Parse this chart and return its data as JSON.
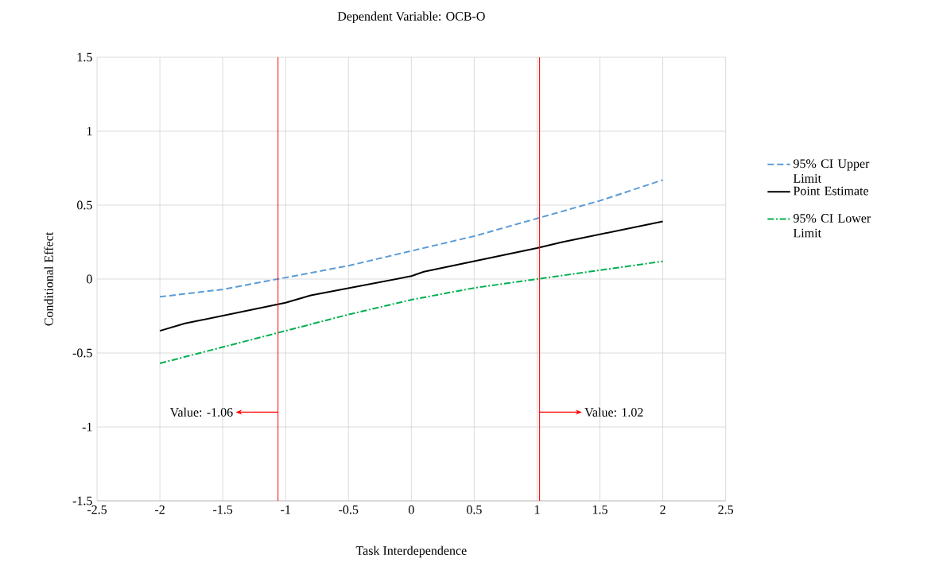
{
  "chart_data": {
    "type": "line",
    "title": "Dependent Variable: OCB-O",
    "xlabel": "Task Interdependence",
    "ylabel": "Conditional  Effect",
    "xlim": [
      -2.5,
      2.5
    ],
    "ylim": [
      -1.5,
      1.5
    ],
    "xticks": [
      -2.5,
      -2,
      -1.5,
      -1,
      -0.5,
      0,
      0.5,
      1,
      1.5,
      2,
      2.5
    ],
    "yticks": [
      -1.5,
      -1,
      -0.5,
      0,
      0.5,
      1,
      1.5
    ],
    "grid": true,
    "legend": "right",
    "series": [
      {
        "name": "95% CI Upper Limit",
        "color": "#5b9bd5",
        "line_style": "dashed",
        "x": [
          -2,
          -1.5,
          -1,
          -0.5,
          0,
          0.5,
          1,
          1.5,
          2
        ],
        "values": [
          -0.12,
          -0.07,
          0.01,
          0.09,
          0.19,
          0.29,
          0.41,
          0.53,
          0.67
        ]
      },
      {
        "name": "Point Estimate",
        "color": "#000000",
        "line_style": "solid",
        "x": [
          -2,
          -1.8,
          -1,
          -0.8,
          0,
          0.1,
          1,
          1.2,
          2
        ],
        "values": [
          -0.35,
          -0.3,
          -0.16,
          -0.11,
          0.02,
          0.05,
          0.21,
          0.25,
          0.39
        ]
      },
      {
        "name": "95% CI Lower Limit",
        "color": "#00b050",
        "line_style": "dashdot",
        "x": [
          -2,
          -1.5,
          -1,
          -0.5,
          0,
          0.5,
          1,
          1.5,
          2
        ],
        "values": [
          -0.57,
          -0.46,
          -0.35,
          -0.24,
          -0.14,
          -0.06,
          0.0,
          0.06,
          0.12
        ]
      }
    ],
    "ref_lines": [
      {
        "axis": "x",
        "value": -1.06,
        "label": "Value: -1.06",
        "color": "#ff0000"
      },
      {
        "axis": "x",
        "value": 1.02,
        "label": "Value: 1.02",
        "color": "#ff0000"
      }
    ]
  }
}
